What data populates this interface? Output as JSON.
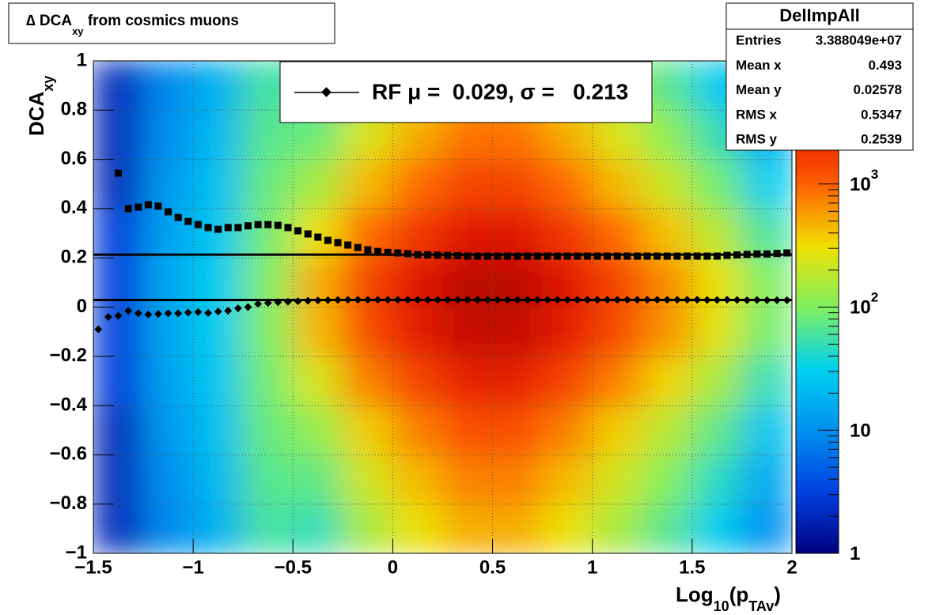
{
  "chart_data": {
    "type": "heatmap",
    "title": [
      "∆ DCA",
      "xy",
      " from cosmics muons"
    ],
    "x_label": [
      "Log",
      "10",
      "(p",
      "TAv",
      ")"
    ],
    "y_label": [
      "DCA",
      "xy"
    ],
    "xlim": [
      -1.5,
      2
    ],
    "ylim": [
      -1,
      1
    ],
    "zlim": [
      1,
      10000
    ],
    "zlog": true,
    "grid": true,
    "xticks": [
      {
        "value": -1.5,
        "label": "−1.5"
      },
      {
        "value": -1,
        "label": "−1"
      },
      {
        "value": -0.5,
        "label": "−0.5"
      },
      0,
      0.5,
      1,
      1.5,
      2
    ],
    "yticks": [
      {
        "value": -1,
        "label": "−1"
      },
      {
        "value": -0.8,
        "label": "−0.8"
      },
      {
        "value": -0.6,
        "label": "−0.6"
      },
      {
        "value": -0.4,
        "label": "−0.4"
      },
      {
        "value": -0.2,
        "label": "−0.2"
      },
      0,
      0.2,
      0.4,
      0.6,
      0.8,
      1
    ],
    "zticks": [
      1,
      10,
      {
        "value": 100,
        "label": "10",
        "sup": "2"
      },
      {
        "value": 1000,
        "label": "10",
        "sup": "3"
      }
    ],
    "palette": [
      "#000080",
      "#0040e0",
      "#0090f0",
      "#00d0f0",
      "#80f060",
      "#f0e000",
      "#ff6000",
      "#e01000",
      "#800000"
    ],
    "x_bins": [
      -1.5,
      -1.25,
      -1,
      -0.75,
      -0.5,
      -0.25,
      0,
      0.25,
      0.5,
      0.75,
      1,
      1.25,
      1.5,
      1.75,
      2
    ],
    "y_bins": [
      -1,
      -0.8,
      -0.6,
      -0.4,
      -0.2,
      0,
      0.2,
      0.4,
      0.6,
      0.8,
      1
    ],
    "z": [
      [
        2,
        9,
        18,
        60,
        50,
        150,
        300,
        500,
        500,
        300,
        150,
        70,
        30,
        10
      ],
      [
        2,
        10,
        21,
        70,
        75,
        225,
        450,
        750,
        750,
        450,
        225,
        105,
        45,
        15
      ],
      [
        2,
        12,
        24,
        80,
        125,
        375,
        750,
        1250,
        1250,
        750,
        375,
        175,
        75,
        25
      ],
      [
        3,
        14,
        27,
        90,
        250,
        750,
        1500,
        2500,
        2500,
        1500,
        750,
        350,
        150,
        50
      ],
      [
        3,
        15,
        30,
        100,
        450,
        1350,
        2700,
        4500,
        4500,
        2700,
        1350,
        630,
        270,
        90
      ],
      [
        3,
        15,
        30,
        100,
        500,
        1500,
        3000,
        5000,
        5000,
        3000,
        1500,
        700,
        300,
        100
      ],
      [
        3,
        14,
        27,
        90,
        300,
        900,
        1800,
        3000,
        3000,
        1800,
        900,
        420,
        180,
        60
      ],
      [
        2,
        12,
        24,
        80,
        150,
        450,
        900,
        1500,
        1500,
        900,
        450,
        210,
        90,
        30
      ],
      [
        2,
        10,
        21,
        70,
        85,
        255,
        510,
        850,
        850,
        510,
        255,
        119,
        51,
        17
      ],
      [
        2,
        9,
        18,
        60,
        50,
        150,
        300,
        500,
        500,
        300,
        150,
        70,
        30,
        10
      ]
    ],
    "x": [
      -1.475,
      -1.425,
      -1.375,
      -1.325,
      -1.275,
      -1.225,
      -1.175,
      -1.125,
      -1.075,
      -1.025,
      -0.975,
      -0.925,
      -0.875,
      -0.825,
      -0.775,
      -0.725,
      -0.675,
      -0.625,
      -0.575,
      -0.525,
      -0.475,
      -0.425,
      -0.375,
      -0.325,
      -0.275,
      -0.225,
      -0.175,
      -0.125,
      -0.075,
      -0.025,
      0.025,
      0.075,
      0.125,
      0.175,
      0.225,
      0.275,
      0.325,
      0.375,
      0.425,
      0.475,
      0.525,
      0.575,
      0.625,
      0.675,
      0.725,
      0.775,
      0.825,
      0.875,
      0.925,
      0.975,
      1.025,
      1.075,
      1.125,
      1.175,
      1.225,
      1.275,
      1.325,
      1.375,
      1.425,
      1.475,
      1.525,
      1.575,
      1.625,
      1.675,
      1.725,
      1.775,
      1.825,
      1.875,
      1.925,
      1.975
    ],
    "series": [
      {
        "marker": "diamond",
        "color": "#000000",
        "values": [
          -0.09,
          -0.04,
          -0.035,
          -0.015,
          -0.025,
          -0.03,
          -0.028,
          -0.025,
          -0.025,
          -0.022,
          -0.02,
          -0.024,
          -0.018,
          -0.015,
          -0.005,
          0.0,
          0.013,
          0.017,
          0.02,
          0.022,
          0.024,
          0.026,
          0.027,
          0.028,
          0.029,
          0.03,
          0.03,
          0.03,
          0.03,
          0.03,
          0.03,
          0.03,
          0.03,
          0.03,
          0.03,
          0.03,
          0.03,
          0.03,
          0.03,
          0.03,
          0.03,
          0.03,
          0.03,
          0.03,
          0.03,
          0.03,
          0.03,
          0.03,
          0.03,
          0.03,
          0.03,
          0.03,
          0.03,
          0.03,
          0.03,
          0.03,
          0.03,
          0.03,
          0.03,
          0.03,
          0.03,
          0.029,
          0.029,
          0.03,
          0.029,
          0.028,
          0.029,
          0.028,
          0.028,
          0.028
        ]
      },
      {
        "marker": "square",
        "color": "#000000",
        "values": [
          null,
          null,
          0.544,
          0.4,
          0.406,
          0.416,
          0.41,
          0.387,
          0.364,
          0.348,
          0.335,
          0.323,
          0.316,
          0.323,
          0.323,
          0.33,
          0.335,
          0.335,
          0.332,
          0.323,
          0.31,
          0.297,
          0.284,
          0.271,
          0.262,
          0.252,
          0.242,
          0.233,
          0.226,
          0.222,
          0.22,
          0.217,
          0.213,
          0.212,
          0.211,
          0.21,
          0.209,
          0.207,
          0.207,
          0.207,
          0.207,
          0.207,
          0.207,
          0.207,
          0.207,
          0.207,
          0.207,
          0.207,
          0.207,
          0.207,
          0.207,
          0.207,
          0.207,
          0.207,
          0.207,
          0.207,
          0.207,
          0.207,
          0.207,
          0.207,
          0.207,
          0.207,
          0.207,
          0.21,
          0.212,
          0.214,
          0.216,
          0.216,
          0.218,
          0.22
        ]
      }
    ],
    "fit_lines": [
      0.029,
      0.213
    ],
    "legend_label": "RF μ =  0.029, σ =   0.213",
    "stats": {
      "name": "DelImpAll",
      "rows": [
        [
          "Entries",
          "3.388049e+07"
        ],
        [
          "Mean x",
          "0.493"
        ],
        [
          "Mean y",
          "0.02578"
        ],
        [
          "RMS x",
          "0.5347"
        ],
        [
          "RMS y",
          "0.2539"
        ]
      ]
    }
  }
}
